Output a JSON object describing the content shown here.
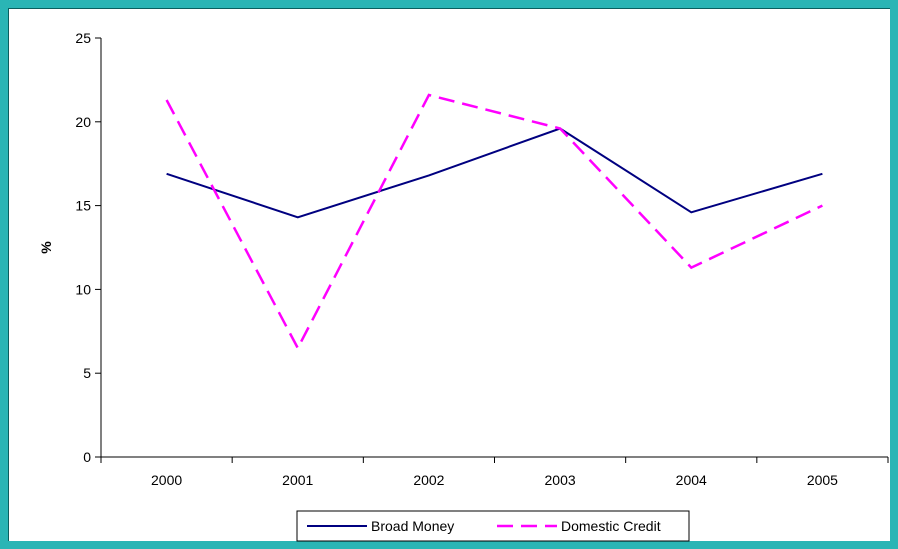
{
  "chart_data": {
    "type": "line",
    "title": "",
    "xlabel": "",
    "ylabel": "%",
    "categories": [
      "2000",
      "2001",
      "2002",
      "2003",
      "2004",
      "2005"
    ],
    "ylim": [
      0,
      25
    ],
    "yticks": [
      0,
      5,
      10,
      15,
      20,
      25
    ],
    "grid": false,
    "legend_position": "bottom",
    "series": [
      {
        "name": "Broad Money",
        "values": [
          16.9,
          14.3,
          16.8,
          19.6,
          14.6,
          16.9
        ],
        "color": "#000080",
        "dash": "solid"
      },
      {
        "name": "Domestic Credit",
        "values": [
          21.3,
          6.5,
          21.6,
          19.6,
          11.3,
          15.0
        ],
        "color": "#ff00ff",
        "dash": "dashed"
      }
    ]
  }
}
